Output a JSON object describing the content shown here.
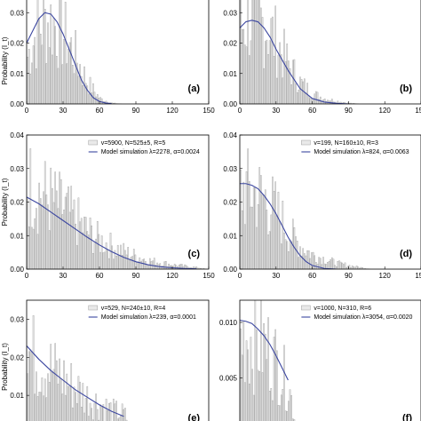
{
  "figure": {
    "y_axis_label": "Probability (I_t)"
  },
  "chart_data": [
    {
      "type": "bar",
      "panel": "(a)",
      "xlim": [
        0,
        150
      ],
      "ylim": [
        0,
        0.04
      ],
      "xticks": [
        "0",
        "30",
        "60",
        "90",
        "120",
        "150"
      ],
      "yticks": [
        "0.00",
        "0.01",
        "0.02",
        "0.03"
      ],
      "ylabel": "Probability (I_t)",
      "legend": [],
      "curve": {
        "x": [
          0,
          5,
          10,
          15,
          20,
          25,
          30,
          35,
          40,
          45,
          50,
          55,
          60,
          65,
          70
        ],
        "y": [
          0.02,
          0.024,
          0.028,
          0.03,
          0.0295,
          0.027,
          0.023,
          0.018,
          0.013,
          0.008,
          0.0045,
          0.002,
          0.0008,
          0.0003,
          0.0001
        ]
      },
      "bars_envelope": {
        "x": [
          0,
          10,
          20,
          30,
          40,
          50,
          60,
          70
        ],
        "y": [
          0.018,
          0.03,
          0.032,
          0.027,
          0.018,
          0.008,
          0.002,
          0.0003
        ]
      }
    },
    {
      "type": "bar",
      "panel": "(b)",
      "xlim": [
        0,
        150
      ],
      "ylim": [
        0,
        0.04
      ],
      "xticks": [
        "0",
        "30",
        "60",
        "90",
        "120",
        "150"
      ],
      "yticks": [
        "0.00",
        "0.01",
        "0.02",
        "0.03"
      ],
      "legend": [],
      "curve": {
        "x": [
          0,
          5,
          10,
          15,
          20,
          25,
          30,
          40,
          50,
          60,
          70,
          80,
          90
        ],
        "y": [
          0.025,
          0.027,
          0.0275,
          0.027,
          0.025,
          0.022,
          0.018,
          0.011,
          0.005,
          0.0018,
          0.0006,
          0.0002,
          0.0
        ]
      },
      "bars_envelope": {
        "x": [
          0,
          10,
          20,
          30,
          40,
          50,
          60,
          70,
          80,
          90
        ],
        "y": [
          0.03,
          0.034,
          0.031,
          0.024,
          0.015,
          0.008,
          0.004,
          0.002,
          0.001,
          0.0003
        ]
      }
    },
    {
      "type": "bar",
      "panel": "(c)",
      "xlim": [
        0,
        150
      ],
      "ylim": [
        0,
        0.04
      ],
      "xticks": [
        "0",
        "30",
        "60",
        "90",
        "120",
        "150"
      ],
      "yticks": [
        "0.00",
        "0.01",
        "0.02",
        "0.03",
        "0.04"
      ],
      "ylabel": "Probability (I_t)",
      "legend": [
        "v=5900, N=525±5, R=5",
        "Model simulation λ=2278, α=0.0024"
      ],
      "curve": {
        "x": [
          0,
          10,
          20,
          30,
          40,
          50,
          60,
          70,
          80,
          90,
          100,
          110,
          120,
          130,
          140
        ],
        "y": [
          0.0215,
          0.0195,
          0.017,
          0.0145,
          0.012,
          0.0095,
          0.0072,
          0.0052,
          0.0035,
          0.0022,
          0.0013,
          0.0007,
          0.0004,
          0.0002,
          0.0001
        ]
      },
      "bars_envelope": {
        "x": [
          0,
          10,
          20,
          30,
          40,
          50,
          60,
          80,
          100,
          120,
          140
        ],
        "y": [
          0.03,
          0.027,
          0.024,
          0.021,
          0.017,
          0.013,
          0.01,
          0.006,
          0.003,
          0.0015,
          0.0005
        ]
      }
    },
    {
      "type": "bar",
      "panel": "(d)",
      "xlim": [
        0,
        150
      ],
      "ylim": [
        0,
        0.04
      ],
      "xticks": [
        "0",
        "30",
        "60",
        "90",
        "120",
        "150"
      ],
      "yticks": [
        "0.00",
        "0.01",
        "0.02",
        "0.03",
        "0.04"
      ],
      "legend": [
        "v=199, N=160±10, R=3",
        "Model simulation λ=824, α=0.0063"
      ],
      "curve": {
        "x": [
          0,
          5,
          10,
          15,
          20,
          25,
          30,
          35,
          40,
          45,
          50,
          55,
          60,
          70,
          80
        ],
        "y": [
          0.0255,
          0.0255,
          0.025,
          0.024,
          0.022,
          0.0195,
          0.0165,
          0.013,
          0.0095,
          0.0065,
          0.004,
          0.0022,
          0.0011,
          0.0002,
          0.0
        ]
      },
      "bars_envelope": {
        "x": [
          0,
          10,
          20,
          30,
          40,
          50,
          60,
          80,
          100
        ],
        "y": [
          0.028,
          0.027,
          0.025,
          0.02,
          0.013,
          0.008,
          0.005,
          0.002,
          0.0005
        ]
      }
    },
    {
      "type": "bar",
      "panel": "(e)",
      "xlim": [
        0,
        150
      ],
      "ylim": [
        0,
        0.035
      ],
      "xticks": [],
      "yticks": [
        "0.01",
        "0.02",
        "0.03"
      ],
      "ylabel": "Probability (I_t)",
      "legend": [
        "v=529, N=240±10, R=4",
        "Model simulation λ=239, α=0.0001"
      ],
      "curve": {
        "x": [
          0,
          10,
          20,
          30,
          40,
          50,
          60,
          70,
          80
        ],
        "y": [
          0.023,
          0.0195,
          0.0165,
          0.014,
          0.0115,
          0.0095,
          0.0075,
          0.0058,
          0.0045
        ]
      },
      "bars_envelope": {
        "x": [
          0,
          10,
          20,
          30,
          40,
          50,
          60,
          70,
          80
        ],
        "y": [
          0.026,
          0.022,
          0.02,
          0.017,
          0.014,
          0.011,
          0.009,
          0.007,
          0.006
        ]
      }
    },
    {
      "type": "bar",
      "panel": "(f)",
      "xlim": [
        0,
        150
      ],
      "ylim": [
        0,
        0.012
      ],
      "xticks": [],
      "yticks": [
        "0.005",
        "0.010"
      ],
      "yticks_partial": [
        "0.005",
        "0.010"
      ],
      "legend": [
        "v=1000, N=310, R=6",
        "Model simulation λ=3054, α=0.0020"
      ],
      "curve": {
        "x": [
          0,
          5,
          10,
          15,
          20,
          25,
          30,
          35,
          40
        ],
        "y": [
          0.0102,
          0.0101,
          0.0099,
          0.0094,
          0.0088,
          0.008,
          0.007,
          0.0059,
          0.0048
        ]
      },
      "bars_envelope": {
        "x": [
          0,
          5,
          10,
          15,
          20,
          25,
          30,
          35,
          40
        ],
        "y": [
          0.01,
          0.0105,
          0.0098,
          0.0095,
          0.0092,
          0.0085,
          0.0075,
          0.0062,
          0.005
        ]
      }
    }
  ],
  "colors": {
    "curve": "#3b46a0",
    "bar_fill": "#e9e9e9",
    "bar_stroke": "#a0a0a0",
    "axis": "#000000"
  }
}
